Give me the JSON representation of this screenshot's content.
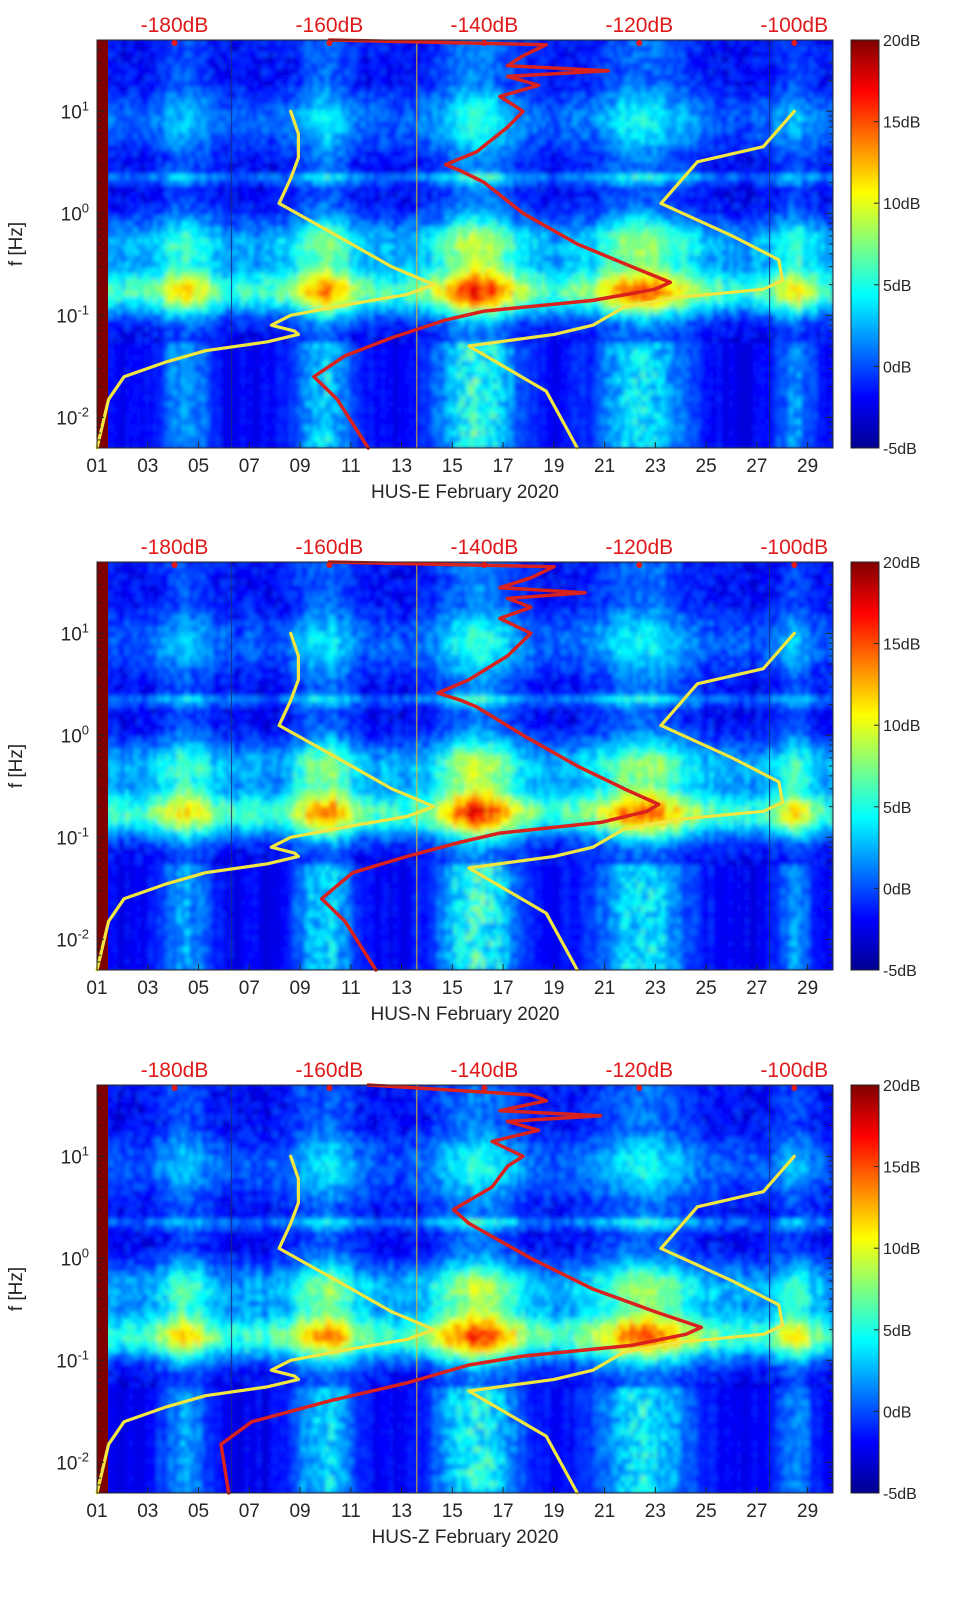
{
  "chart_data": [
    {
      "type": "heatmap",
      "station": "HUS-E",
      "xlabel": "HUS-E February 2020",
      "ylabel": "f [Hz]",
      "x_ticks": [
        "01",
        "03",
        "05",
        "07",
        "09",
        "11",
        "13",
        "15",
        "17",
        "19",
        "21",
        "23",
        "25",
        "27",
        "29"
      ],
      "x_range_days": [
        1,
        30
      ],
      "y_scale": "log",
      "y_range_hz": [
        0.005,
        50
      ],
      "y_ticks": [
        {
          "value": 0.01,
          "base": "10",
          "exp": "-2"
        },
        {
          "value": 0.1,
          "base": "10",
          "exp": "-1"
        },
        {
          "value": 1,
          "base": "10",
          "exp": "0"
        },
        {
          "value": 10,
          "base": "10",
          "exp": "1"
        }
      ],
      "top_axis_labels": [
        "-180dB",
        "-160dB",
        "-140dB",
        "-120dB",
        "-100dB"
      ],
      "top_axis_range_db": [
        -190,
        -95
      ],
      "colorbar": {
        "range_db": [
          -5,
          20
        ],
        "tick_labels": [
          "20dB",
          "15dB",
          "10dB",
          "5dB",
          "0dB",
          "-5dB"
        ]
      },
      "series": [
        {
          "name": "yellow_model_low",
          "color": "#f2e641",
          "points": [
            [
              -190,
              0.005
            ],
            [
              -188.5,
              0.015
            ],
            [
              -186.5,
              0.025
            ],
            [
              -181,
              0.035
            ],
            [
              -176,
              0.045
            ],
            [
              -168,
              0.055
            ],
            [
              -164,
              0.065
            ],
            [
              -164.5,
              0.07
            ],
            [
              -167.5,
              0.08
            ],
            [
              -165,
              0.1
            ],
            [
              -157,
              0.13
            ],
            [
              -150,
              0.16
            ],
            [
              -146.5,
              0.2
            ],
            [
              -152,
              0.3
            ],
            [
              -159,
              0.6
            ],
            [
              -166.5,
              1.25
            ],
            [
              -165,
              2.2
            ],
            [
              -164,
              3.5
            ],
            [
              -164,
              6
            ],
            [
              -165,
              10
            ]
          ]
        },
        {
          "name": "yellow_model_high",
          "color": "#f2e641",
          "points": [
            [
              -117.2,
              1.25
            ],
            [
              -112.5,
              3.2
            ],
            [
              -104,
              4.5
            ],
            [
              -100,
              10
            ]
          ]
        },
        {
          "name": "yellow_model_high_lower",
          "color": "#f2e641",
          "points": [
            [
              -117.2,
              1.25
            ],
            [
              -108,
              0.6
            ],
            [
              -102,
              0.35
            ],
            [
              -101.5,
              0.22
            ],
            [
              -104,
              0.18
            ],
            [
              -115,
              0.15
            ],
            [
              -122,
              0.12
            ],
            [
              -126,
              0.08
            ],
            [
              -131,
              0.065
            ],
            [
              -142,
              0.05
            ],
            [
              -132,
              0.018
            ],
            [
              -128,
              0.005
            ]
          ]
        },
        {
          "name": "red_median_noise",
          "color": "#d9211d",
          "points": [
            [
              -155,
              0.005
            ],
            [
              -159,
              0.015
            ],
            [
              -162,
              0.025
            ],
            [
              -158,
              0.04
            ],
            [
              -152,
              0.06
            ],
            [
              -145,
              0.09
            ],
            [
              -140,
              0.11
            ],
            [
              -126,
              0.14
            ],
            [
              -118,
              0.18
            ],
            [
              -116,
              0.21
            ],
            [
              -121,
              0.3
            ],
            [
              -128,
              0.5
            ],
            [
              -135,
              1
            ],
            [
              -140,
              2
            ],
            [
              -143,
              2.6
            ],
            [
              -145,
              3
            ],
            [
              -141,
              4
            ],
            [
              -137,
              7
            ],
            [
              -135,
              10
            ],
            [
              -138,
              14
            ],
            [
              -133,
              18
            ],
            [
              -137,
              22
            ],
            [
              -124,
              25
            ],
            [
              -137,
              28
            ],
            [
              -135,
              35
            ],
            [
              -132,
              45
            ],
            [
              -160,
              50
            ]
          ]
        }
      ]
    },
    {
      "type": "heatmap",
      "station": "HUS-N",
      "xlabel": "HUS-N February 2020",
      "ylabel": "f [Hz]",
      "x_ticks": [
        "01",
        "03",
        "05",
        "07",
        "09",
        "11",
        "13",
        "15",
        "17",
        "19",
        "21",
        "23",
        "25",
        "27",
        "29"
      ],
      "x_range_days": [
        1,
        30
      ],
      "y_scale": "log",
      "y_range_hz": [
        0.005,
        50
      ],
      "y_ticks": [
        {
          "value": 0.01,
          "base": "10",
          "exp": "-2"
        },
        {
          "value": 0.1,
          "base": "10",
          "exp": "-1"
        },
        {
          "value": 1,
          "base": "10",
          "exp": "0"
        },
        {
          "value": 10,
          "base": "10",
          "exp": "1"
        }
      ],
      "top_axis_labels": [
        "-180dB",
        "-160dB",
        "-140dB",
        "-120dB",
        "-100dB"
      ],
      "top_axis_range_db": [
        -190,
        -95
      ],
      "colorbar": {
        "range_db": [
          -5,
          20
        ],
        "tick_labels": [
          "20dB",
          "15dB",
          "10dB",
          "5dB",
          "0dB",
          "-5dB"
        ]
      },
      "series": [
        {
          "name": "yellow_model_low",
          "color": "#f2e641",
          "points": [
            [
              -190,
              0.005
            ],
            [
              -188.5,
              0.015
            ],
            [
              -186.5,
              0.025
            ],
            [
              -181,
              0.035
            ],
            [
              -176,
              0.045
            ],
            [
              -168,
              0.055
            ],
            [
              -164,
              0.065
            ],
            [
              -164.5,
              0.07
            ],
            [
              -167.5,
              0.08
            ],
            [
              -165,
              0.1
            ],
            [
              -157,
              0.13
            ],
            [
              -150,
              0.16
            ],
            [
              -146.5,
              0.2
            ],
            [
              -152,
              0.3
            ],
            [
              -159,
              0.6
            ],
            [
              -166.5,
              1.25
            ],
            [
              -165,
              2.2
            ],
            [
              -164,
              3.5
            ],
            [
              -164,
              6
            ],
            [
              -165,
              10
            ]
          ]
        },
        {
          "name": "yellow_model_high",
          "color": "#f2e641",
          "points": [
            [
              -117.2,
              1.25
            ],
            [
              -112.5,
              3.2
            ],
            [
              -104,
              4.5
            ],
            [
              -100,
              10
            ]
          ]
        },
        {
          "name": "yellow_model_high_lower",
          "color": "#f2e641",
          "points": [
            [
              -117.2,
              1.25
            ],
            [
              -108,
              0.6
            ],
            [
              -102,
              0.35
            ],
            [
              -101.5,
              0.22
            ],
            [
              -104,
              0.18
            ],
            [
              -115,
              0.15
            ],
            [
              -122,
              0.12
            ],
            [
              -126,
              0.08
            ],
            [
              -131,
              0.065
            ],
            [
              -142,
              0.05
            ],
            [
              -132,
              0.018
            ],
            [
              -128,
              0.005
            ]
          ]
        },
        {
          "name": "red_median_noise",
          "color": "#d9211d",
          "points": [
            [
              -154,
              0.005
            ],
            [
              -158,
              0.015
            ],
            [
              -161,
              0.025
            ],
            [
              -157,
              0.045
            ],
            [
              -150,
              0.065
            ],
            [
              -143,
              0.09
            ],
            [
              -138,
              0.11
            ],
            [
              -125,
              0.14
            ],
            [
              -119,
              0.18
            ],
            [
              -117.5,
              0.21
            ],
            [
              -122,
              0.3
            ],
            [
              -128,
              0.5
            ],
            [
              -135,
              1
            ],
            [
              -141,
              1.9
            ],
            [
              -143,
              2.2
            ],
            [
              -146,
              2.6
            ],
            [
              -142,
              3.5
            ],
            [
              -137,
              6
            ],
            [
              -134,
              10
            ],
            [
              -138,
              14
            ],
            [
              -134,
              18
            ],
            [
              -137,
              22
            ],
            [
              -127,
              25
            ],
            [
              -138,
              28
            ],
            [
              -134,
              35
            ],
            [
              -131,
              45
            ],
            [
              -160,
              50
            ]
          ]
        }
      ]
    },
    {
      "type": "heatmap",
      "station": "HUS-Z",
      "xlabel": "HUS-Z February 2020",
      "ylabel": "f [Hz]",
      "x_ticks": [
        "01",
        "03",
        "05",
        "07",
        "09",
        "11",
        "13",
        "15",
        "17",
        "19",
        "21",
        "23",
        "25",
        "27",
        "29"
      ],
      "x_range_days": [
        1,
        30
      ],
      "y_scale": "log",
      "y_range_hz": [
        0.005,
        50
      ],
      "y_ticks": [
        {
          "value": 0.01,
          "base": "10",
          "exp": "-2"
        },
        {
          "value": 0.1,
          "base": "10",
          "exp": "-1"
        },
        {
          "value": 1,
          "base": "10",
          "exp": "0"
        },
        {
          "value": 10,
          "base": "10",
          "exp": "1"
        }
      ],
      "top_axis_labels": [
        "-180dB",
        "-160dB",
        "-140dB",
        "-120dB",
        "-100dB"
      ],
      "top_axis_range_db": [
        -190,
        -95
      ],
      "colorbar": {
        "range_db": [
          -5,
          20
        ],
        "tick_labels": [
          "20dB",
          "15dB",
          "10dB",
          "5dB",
          "0dB",
          "-5dB"
        ]
      },
      "series": [
        {
          "name": "yellow_model_low",
          "color": "#f2e641",
          "points": [
            [
              -190,
              0.005
            ],
            [
              -188.5,
              0.015
            ],
            [
              -186.5,
              0.025
            ],
            [
              -181,
              0.035
            ],
            [
              -176,
              0.045
            ],
            [
              -168,
              0.055
            ],
            [
              -164,
              0.065
            ],
            [
              -164.5,
              0.07
            ],
            [
              -167.5,
              0.08
            ],
            [
              -165,
              0.1
            ],
            [
              -157,
              0.13
            ],
            [
              -150,
              0.16
            ],
            [
              -146.5,
              0.2
            ],
            [
              -152,
              0.3
            ],
            [
              -159,
              0.6
            ],
            [
              -166.5,
              1.25
            ],
            [
              -165,
              2.2
            ],
            [
              -164,
              3.5
            ],
            [
              -164,
              6
            ],
            [
              -165,
              10
            ]
          ]
        },
        {
          "name": "yellow_model_high",
          "color": "#f2e641",
          "points": [
            [
              -117.2,
              1.25
            ],
            [
              -112.5,
              3.2
            ],
            [
              -104,
              4.5
            ],
            [
              -100,
              10
            ]
          ]
        },
        {
          "name": "yellow_model_high_lower",
          "color": "#f2e641",
          "points": [
            [
              -117.2,
              1.25
            ],
            [
              -108,
              0.6
            ],
            [
              -102,
              0.35
            ],
            [
              -101.5,
              0.22
            ],
            [
              -104,
              0.18
            ],
            [
              -115,
              0.15
            ],
            [
              -122,
              0.12
            ],
            [
              -126,
              0.08
            ],
            [
              -131,
              0.065
            ],
            [
              -142,
              0.05
            ],
            [
              -132,
              0.018
            ],
            [
              -128,
              0.005
            ]
          ]
        },
        {
          "name": "red_median_noise",
          "color": "#d9211d",
          "points": [
            [
              -173,
              0.005
            ],
            [
              -174,
              0.015
            ],
            [
              -170,
              0.025
            ],
            [
              -160,
              0.04
            ],
            [
              -150,
              0.06
            ],
            [
              -142,
              0.09
            ],
            [
              -135,
              0.11
            ],
            [
              -121,
              0.14
            ],
            [
              -114,
              0.18
            ],
            [
              -112,
              0.21
            ],
            [
              -118,
              0.3
            ],
            [
              -126,
              0.5
            ],
            [
              -134,
              1
            ],
            [
              -142,
              2.2
            ],
            [
              -144,
              3
            ],
            [
              -139,
              5
            ],
            [
              -137,
              8
            ],
            [
              -135,
              10
            ],
            [
              -139,
              14
            ],
            [
              -133,
              18
            ],
            [
              -137,
              22
            ],
            [
              -125,
              25
            ],
            [
              -138,
              28
            ],
            [
              -132,
              35
            ],
            [
              -134,
              40
            ],
            [
              -155,
              50
            ]
          ]
        }
      ]
    }
  ]
}
